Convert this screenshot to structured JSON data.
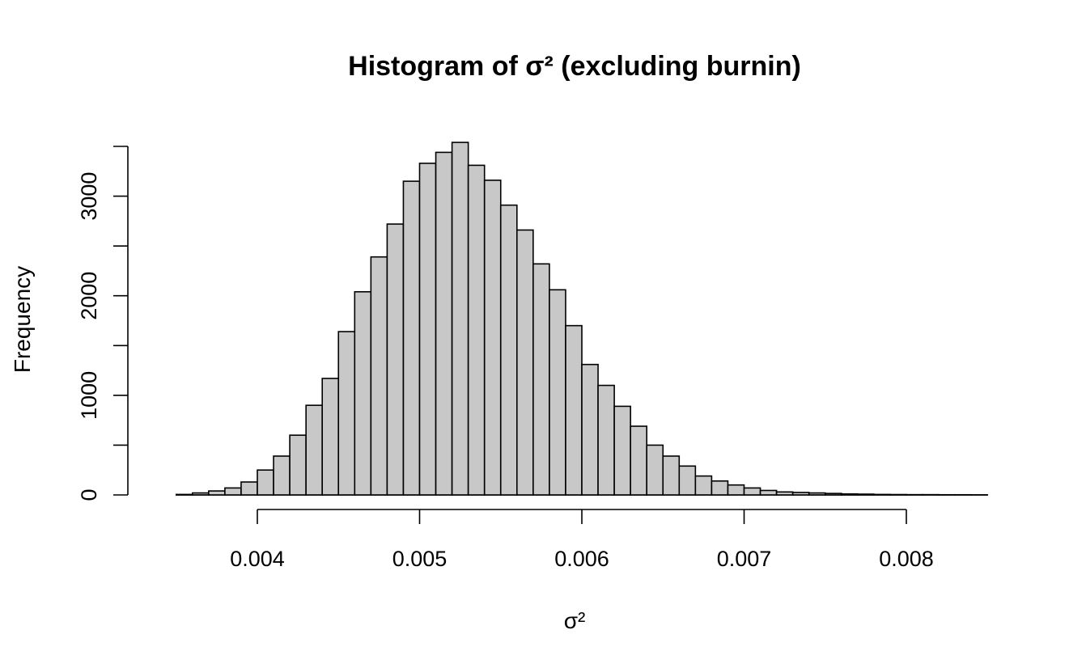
{
  "chart_data": {
    "type": "bar",
    "title": "Histogram of σ² (excluding burnin)",
    "xlabel": "σ²",
    "ylabel": "Frequency",
    "bin_width": 0.0001,
    "bin_start": 0.0035,
    "values": [
      5,
      20,
      40,
      70,
      130,
      250,
      390,
      600,
      900,
      1170,
      1640,
      2040,
      2390,
      2720,
      3150,
      3330,
      3440,
      3540,
      3310,
      3160,
      2910,
      2660,
      2320,
      2060,
      1700,
      1310,
      1100,
      890,
      690,
      500,
      390,
      290,
      190,
      140,
      100,
      70,
      45,
      30,
      25,
      20,
      15,
      10,
      8,
      5,
      4,
      3,
      3,
      2,
      2,
      1
    ],
    "xlim": [
      0.0034,
      0.0085
    ],
    "ylim": [
      0,
      3500
    ],
    "x_ticks": [
      0.004,
      0.005,
      0.006,
      0.007,
      0.008
    ],
    "x_tick_labels": [
      "0.004",
      "0.005",
      "0.006",
      "0.007",
      "0.008"
    ],
    "y_ticks": [
      0,
      500,
      1000,
      1500,
      2000,
      2500,
      3000,
      3500
    ],
    "y_tick_labels": [
      "0",
      "",
      "1000",
      "",
      "2000",
      "",
      "3000",
      ""
    ],
    "bar_color": "#c8c8c8",
    "grid": false,
    "legend": "none"
  }
}
